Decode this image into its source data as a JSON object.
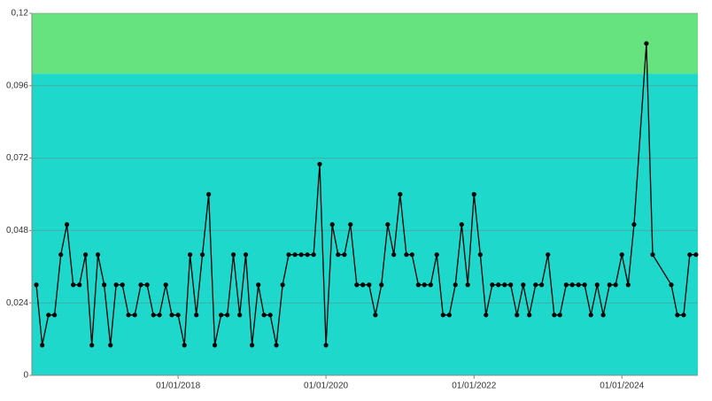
{
  "chart_data": {
    "type": "line",
    "color": "#000000",
    "marker_color": "#000000",
    "grid": true,
    "bands": [
      {
        "from": 0,
        "to": 0.1,
        "color": "#1dd8cb"
      },
      {
        "from": 0.1,
        "to": 0.12,
        "color": "#66e37f"
      }
    ],
    "ylim": [
      0,
      0.12
    ],
    "yticks": [
      0,
      {
        "value": 0.024,
        "label": "0,024"
      },
      {
        "value": 0.048,
        "label": "0,048"
      },
      {
        "value": 0.072,
        "label": "0,072"
      },
      {
        "value": 0.096,
        "label": "0,096"
      },
      {
        "value": 0.12,
        "label": "0,12"
      }
    ],
    "xlim": [
      "2016-01-10",
      "2025-01-10"
    ],
    "xticks": [
      {
        "value": "2018-01-01",
        "label": "01/01/2018"
      },
      {
        "value": "2020-01-01",
        "label": "01/01/2020"
      },
      {
        "value": "2022-01-01",
        "label": "01/01/2022"
      },
      {
        "value": "2024-01-01",
        "label": "01/01/2024"
      }
    ],
    "x": [
      "2016-02-01",
      "2016-03-01",
      "2016-04-01",
      "2016-05-01",
      "2016-06-01",
      "2016-07-01",
      "2016-08-01",
      "2016-09-01",
      "2016-10-01",
      "2016-11-01",
      "2016-12-01",
      "2017-01-01",
      "2017-02-01",
      "2017-03-01",
      "2017-04-01",
      "2017-05-01",
      "2017-06-01",
      "2017-07-01",
      "2017-08-01",
      "2017-09-01",
      "2017-10-01",
      "2017-11-01",
      "2017-12-01",
      "2018-01-01",
      "2018-02-01",
      "2018-03-01",
      "2018-04-01",
      "2018-05-01",
      "2018-06-01",
      "2018-07-01",
      "2018-08-01",
      "2018-09-01",
      "2018-10-01",
      "2018-11-01",
      "2018-12-01",
      "2019-01-01",
      "2019-02-01",
      "2019-03-01",
      "2019-04-01",
      "2019-05-01",
      "2019-06-01",
      "2019-07-01",
      "2019-08-01",
      "2019-09-01",
      "2019-10-01",
      "2019-11-01",
      "2019-12-01",
      "2020-01-01",
      "2020-02-01",
      "2020-03-01",
      "2020-04-01",
      "2020-05-01",
      "2020-06-01",
      "2020-07-01",
      "2020-08-01",
      "2020-09-01",
      "2020-10-01",
      "2020-11-01",
      "2020-12-01",
      "2021-01-01",
      "2021-02-01",
      "2021-03-01",
      "2021-04-01",
      "2021-05-01",
      "2021-06-01",
      "2021-07-01",
      "2021-08-01",
      "2021-09-01",
      "2021-10-01",
      "2021-11-01",
      "2021-12-01",
      "2022-01-01",
      "2022-02-01",
      "2022-03-01",
      "2022-04-01",
      "2022-05-01",
      "2022-06-01",
      "2022-07-01",
      "2022-08-01",
      "2022-09-01",
      "2022-10-01",
      "2022-11-01",
      "2022-12-01",
      "2023-01-01",
      "2023-02-01",
      "2023-03-01",
      "2023-04-01",
      "2023-05-01",
      "2023-06-01",
      "2023-07-01",
      "2023-08-01",
      "2023-09-01",
      "2023-10-01",
      "2023-11-01",
      "2023-12-01",
      "2024-01-01",
      "2024-02-01",
      "2024-03-01",
      "2024-05-01",
      "2024-06-01",
      "2024-09-01",
      "2024-10-01",
      "2024-11-01",
      "2024-12-01",
      "2025-01-01"
    ],
    "values": [
      0.03,
      0.01,
      0.02,
      0.02,
      0.04,
      0.05,
      0.03,
      0.03,
      0.04,
      0.01,
      0.04,
      0.03,
      0.01,
      0.03,
      0.03,
      0.02,
      0.02,
      0.03,
      0.03,
      0.02,
      0.02,
      0.03,
      0.02,
      0.02,
      0.01,
      0.04,
      0.02,
      0.04,
      0.06,
      0.01,
      0.02,
      0.02,
      0.04,
      0.02,
      0.04,
      0.01,
      0.03,
      0.02,
      0.02,
      0.01,
      0.03,
      0.04,
      0.04,
      0.04,
      0.04,
      0.04,
      0.07,
      0.01,
      0.05,
      0.04,
      0.04,
      0.05,
      0.03,
      0.03,
      0.03,
      0.02,
      0.03,
      0.05,
      0.04,
      0.06,
      0.04,
      0.04,
      0.03,
      0.03,
      0.03,
      0.04,
      0.02,
      0.02,
      0.03,
      0.05,
      0.03,
      0.06,
      0.04,
      0.02,
      0.03,
      0.03,
      0.03,
      0.03,
      0.02,
      0.03,
      0.02,
      0.03,
      0.03,
      0.04,
      0.02,
      0.02,
      0.03,
      0.03,
      0.03,
      0.03,
      0.02,
      0.03,
      0.02,
      0.03,
      0.03,
      0.04,
      0.03,
      0.05,
      0.11,
      0.04,
      0.03,
      0.02,
      0.02,
      0.04,
      0.04
    ]
  }
}
